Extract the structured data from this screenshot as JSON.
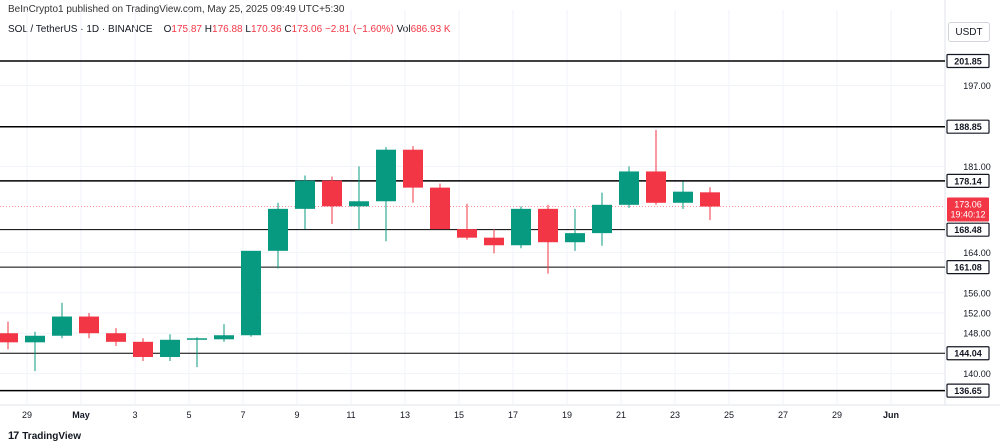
{
  "header": {
    "published": "BeInCrypto1 published on TradingView.com, May 25, 2025 09:49 UTC+5:30"
  },
  "symbol": {
    "title": "SOL / TetherUS · 1D · BINANCE",
    "open_label": "O",
    "open": "175.87",
    "high_label": "H",
    "high": "176.88",
    "low_label": "L",
    "low": "170.36",
    "close_label": "C",
    "close": "173.06",
    "change": "−2.81 (−1.60%)",
    "vol_label": "Vol",
    "vol": "686.93 K"
  },
  "currency": "USDT",
  "footer": {
    "brand": "TradingView"
  },
  "colors": {
    "up": "#089981",
    "down": "#f23645",
    "line": "#000000",
    "axis_text": "#131722"
  },
  "chart_data": {
    "type": "candlestick",
    "title": "",
    "ylim": [
      134,
      206
    ],
    "x_tick_labels": [
      "29",
      "May",
      "3",
      "5",
      "7",
      "9",
      "11",
      "13",
      "15",
      "17",
      "19",
      "21",
      "23",
      "25",
      "27",
      "29",
      "Jun"
    ],
    "y_tick_labels": [
      "197.00",
      "181.00",
      "164.00",
      "156.00",
      "152.00",
      "148.00",
      "140.00"
    ],
    "y_ticks": [
      197,
      181,
      164,
      156,
      152,
      148,
      140
    ],
    "levels": [
      201.85,
      188.85,
      178.14,
      168.48,
      161.08,
      144.04,
      136.65
    ],
    "level_labels": [
      "201.85",
      "188.85",
      "178.14",
      "168.48",
      "161.08",
      "144.04",
      "136.65"
    ],
    "last_price": {
      "value": 173.06,
      "label": "173.06",
      "countdown": "19:40:12"
    },
    "candles": [
      {
        "date": "Apr 28",
        "o": 148.0,
        "h": 150.3,
        "l": 144.8,
        "c": 146.2
      },
      {
        "date": "Apr 29",
        "o": 146.2,
        "h": 148.3,
        "l": 140.5,
        "c": 147.5
      },
      {
        "date": "Apr 30",
        "o": 147.5,
        "h": 154.0,
        "l": 147.0,
        "c": 151.3
      },
      {
        "date": "May 1",
        "o": 151.3,
        "h": 152.0,
        "l": 147.0,
        "c": 148.0
      },
      {
        "date": "May 2",
        "o": 148.0,
        "h": 149.0,
        "l": 145.5,
        "c": 146.3
      },
      {
        "date": "May 3",
        "o": 146.3,
        "h": 147.0,
        "l": 142.5,
        "c": 143.3
      },
      {
        "date": "May 4",
        "o": 143.3,
        "h": 147.8,
        "l": 142.5,
        "c": 146.7
      },
      {
        "date": "May 5",
        "o": 146.7,
        "h": 147.2,
        "l": 141.3,
        "c": 147.0
      },
      {
        "date": "May 6",
        "o": 146.8,
        "h": 149.8,
        "l": 146.3,
        "c": 147.6
      },
      {
        "date": "May 7",
        "o": 147.6,
        "h": 164.3,
        "l": 147.3,
        "c": 164.3
      },
      {
        "date": "May 8",
        "o": 164.3,
        "h": 173.8,
        "l": 160.8,
        "c": 172.6
      },
      {
        "date": "May 9",
        "o": 172.6,
        "h": 179.2,
        "l": 168.6,
        "c": 178.2
      },
      {
        "date": "May 10",
        "o": 178.2,
        "h": 179.0,
        "l": 169.6,
        "c": 173.1
      },
      {
        "date": "May 11",
        "o": 173.1,
        "h": 181.0,
        "l": 168.5,
        "c": 174.1
      },
      {
        "date": "May 12",
        "o": 174.1,
        "h": 184.8,
        "l": 166.2,
        "c": 184.3
      },
      {
        "date": "May 13",
        "o": 184.3,
        "h": 185.0,
        "l": 173.8,
        "c": 176.8
      },
      {
        "date": "May 14",
        "o": 176.8,
        "h": 177.6,
        "l": 168.6,
        "c": 168.6
      },
      {
        "date": "May 15",
        "o": 168.6,
        "h": 173.6,
        "l": 166.5,
        "c": 166.9
      },
      {
        "date": "May 16",
        "o": 166.9,
        "h": 168.6,
        "l": 163.8,
        "c": 165.4
      },
      {
        "date": "May 17",
        "o": 165.4,
        "h": 173.1,
        "l": 164.8,
        "c": 172.6
      },
      {
        "date": "May 18",
        "o": 172.6,
        "h": 173.4,
        "l": 159.8,
        "c": 166.0
      },
      {
        "date": "May 19",
        "o": 166.0,
        "h": 172.6,
        "l": 164.3,
        "c": 167.8
      },
      {
        "date": "May 20",
        "o": 167.8,
        "h": 175.8,
        "l": 165.3,
        "c": 173.4
      },
      {
        "date": "May 21",
        "o": 173.4,
        "h": 181.0,
        "l": 172.8,
        "c": 180.0
      },
      {
        "date": "May 22",
        "o": 180.0,
        "h": 188.2,
        "l": 173.4,
        "c": 173.8
      },
      {
        "date": "May 23",
        "o": 173.8,
        "h": 178.0,
        "l": 172.6,
        "c": 176.0
      },
      {
        "date": "May 24",
        "o": 175.87,
        "h": 176.88,
        "l": 170.36,
        "c": 173.06
      }
    ]
  }
}
